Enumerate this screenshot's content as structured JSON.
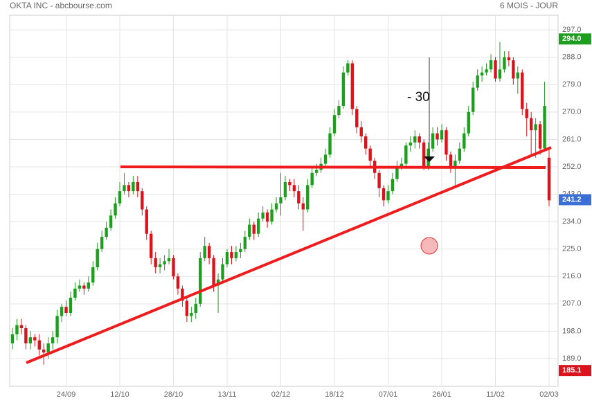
{
  "chart_data": {
    "type": "candlestick",
    "title": "OKTA INC - abcbourse.com",
    "subtitle": "6 MOIS - JOUR",
    "annotation": "- 30",
    "categories": [
      null,
      null,
      null,
      null,
      null,
      null,
      null,
      null,
      null,
      null,
      null,
      null,
      "24/09",
      null,
      null,
      null,
      null,
      null,
      null,
      null,
      null,
      null,
      null,
      null,
      "12/10",
      null,
      null,
      null,
      null,
      null,
      null,
      null,
      null,
      null,
      null,
      null,
      "28/10",
      null,
      null,
      null,
      null,
      null,
      null,
      null,
      null,
      null,
      null,
      null,
      "13/11",
      null,
      null,
      null,
      null,
      null,
      null,
      null,
      null,
      null,
      null,
      null,
      "02/12",
      null,
      null,
      null,
      null,
      null,
      null,
      null,
      null,
      null,
      null,
      null,
      "18/12",
      null,
      null,
      null,
      null,
      null,
      null,
      null,
      null,
      null,
      null,
      null,
      "07/01",
      null,
      null,
      null,
      null,
      null,
      null,
      null,
      null,
      null,
      null,
      null,
      "26/01",
      null,
      null,
      null,
      null,
      null,
      null,
      null,
      null,
      null,
      null,
      null,
      "11/02",
      null,
      null,
      null,
      null,
      null,
      null,
      null,
      null,
      null,
      null,
      null,
      "02/03"
    ],
    "open": [
      194,
      197,
      200,
      199,
      194,
      196,
      195,
      192,
      191,
      194,
      196,
      203,
      206,
      204,
      209,
      212,
      213,
      212,
      214,
      219,
      225,
      229,
      232,
      236,
      240,
      244,
      246,
      244,
      247,
      244,
      238,
      230,
      222,
      219,
      220,
      221,
      222,
      216,
      212,
      208,
      203,
      204,
      207,
      222,
      226,
      222,
      213,
      215,
      220,
      224,
      222,
      224,
      225,
      229,
      233,
      230,
      235,
      237,
      234,
      238,
      240,
      242,
      247,
      246,
      244,
      240,
      238,
      246,
      250,
      251,
      253,
      256,
      263,
      269,
      272,
      283,
      286,
      271,
      265,
      262,
      258,
      254,
      250,
      245,
      241,
      244,
      248,
      252,
      253,
      259,
      260,
      262,
      260,
      252,
      258,
      263,
      261,
      264,
      256,
      252,
      254,
      258,
      263,
      270,
      278,
      282,
      283,
      284,
      287,
      281,
      284,
      288,
      287,
      281,
      283,
      271,
      268,
      264,
      266,
      258,
      255
    ],
    "high": [
      199,
      202,
      202,
      200,
      198,
      197,
      197,
      194,
      196,
      198,
      205,
      207,
      208,
      211,
      214,
      215,
      214,
      216,
      221,
      227,
      231,
      234,
      238,
      242,
      247,
      250,
      247,
      249,
      249,
      245,
      239,
      231,
      224,
      222,
      223,
      225,
      223,
      217,
      213,
      209,
      206,
      209,
      224,
      229,
      227,
      223,
      217,
      222,
      225,
      226,
      226,
      227,
      231,
      235,
      234,
      237,
      239,
      238,
      240,
      242,
      250,
      249,
      248,
      248,
      246,
      242,
      248,
      252,
      253,
      255,
      258,
      265,
      271,
      274,
      285,
      287,
      287,
      272,
      267,
      263,
      259,
      255,
      251,
      246,
      246,
      250,
      254,
      255,
      260,
      262,
      264,
      263,
      261,
      260,
      265,
      265,
      266,
      265,
      257,
      256,
      260,
      265,
      272,
      280,
      284,
      285,
      286,
      289,
      288,
      293,
      290,
      290,
      288,
      285,
      284,
      273,
      270,
      268,
      267,
      280,
      258
    ],
    "low": [
      192,
      195,
      197,
      192,
      192,
      193,
      190,
      187,
      189,
      192,
      194,
      201,
      203,
      203,
      208,
      211,
      210,
      211,
      213,
      218,
      224,
      228,
      231,
      235,
      239,
      243,
      242,
      243,
      242,
      236,
      228,
      220,
      217,
      217,
      218,
      220,
      215,
      210,
      206,
      201,
      201,
      202,
      206,
      221,
      220,
      211,
      204,
      214,
      219,
      220,
      221,
      222,
      224,
      228,
      228,
      229,
      234,
      232,
      233,
      237,
      236,
      241,
      244,
      242,
      238,
      231,
      237,
      245,
      249,
      250,
      252,
      255,
      262,
      268,
      271,
      282,
      269,
      263,
      260,
      256,
      252,
      248,
      242,
      239,
      240,
      243,
      247,
      251,
      252,
      257,
      258,
      258,
      251,
      251,
      257,
      259,
      260,
      254,
      250,
      245,
      253,
      257,
      262,
      269,
      277,
      280,
      282,
      283,
      280,
      280,
      283,
      285,
      279,
      276,
      269,
      262,
      256,
      255,
      256,
      257,
      239
    ],
    "close": [
      197,
      200,
      199,
      194,
      196,
      195,
      192,
      191,
      194,
      196,
      203,
      206,
      204,
      209,
      212,
      213,
      212,
      214,
      219,
      225,
      229,
      232,
      236,
      240,
      244,
      246,
      244,
      247,
      244,
      238,
      230,
      222,
      219,
      220,
      221,
      222,
      216,
      212,
      208,
      203,
      204,
      207,
      222,
      226,
      222,
      213,
      215,
      220,
      224,
      222,
      224,
      225,
      229,
      233,
      230,
      235,
      237,
      234,
      238,
      240,
      242,
      247,
      246,
      244,
      240,
      238,
      246,
      250,
      251,
      253,
      256,
      263,
      269,
      272,
      283,
      286,
      271,
      265,
      262,
      258,
      254,
      250,
      245,
      241,
      244,
      248,
      252,
      253,
      259,
      260,
      262,
      260,
      252,
      258,
      263,
      261,
      264,
      256,
      252,
      254,
      258,
      263,
      270,
      278,
      282,
      283,
      284,
      287,
      281,
      284,
      288,
      287,
      281,
      283,
      271,
      268,
      264,
      266,
      258,
      272,
      241
    ],
    "up_color": "#1e9e1e",
    "down_color": "#d9141c",
    "ylim": [
      179.9,
      301.8
    ],
    "yticks": [
      {
        "value": 189,
        "label": "189.0"
      },
      {
        "value": 198,
        "label": "198.0"
      },
      {
        "value": 207,
        "label": "207.0"
      },
      {
        "value": 216,
        "label": "216.0"
      },
      {
        "value": 225,
        "label": "225.0"
      },
      {
        "value": 234,
        "label": "234.0"
      },
      {
        "value": 243,
        "label": "243.0"
      },
      {
        "value": 252,
        "label": "252.0"
      },
      {
        "value": 261,
        "label": "261.0"
      },
      {
        "value": 270,
        "label": "270.0"
      },
      {
        "value": 279,
        "label": "279.0"
      },
      {
        "value": 288,
        "label": "288.0"
      },
      {
        "value": 297,
        "label": "297.0"
      }
    ],
    "price_markers": [
      {
        "value": 294,
        "label": "294.0",
        "color": "#1e9e1e"
      },
      {
        "value": 241.2,
        "label": "241.2",
        "color": "#3b6fd6"
      },
      {
        "value": 185.1,
        "label": "185.1",
        "color": "#d9141c"
      }
    ],
    "grid": true
  }
}
